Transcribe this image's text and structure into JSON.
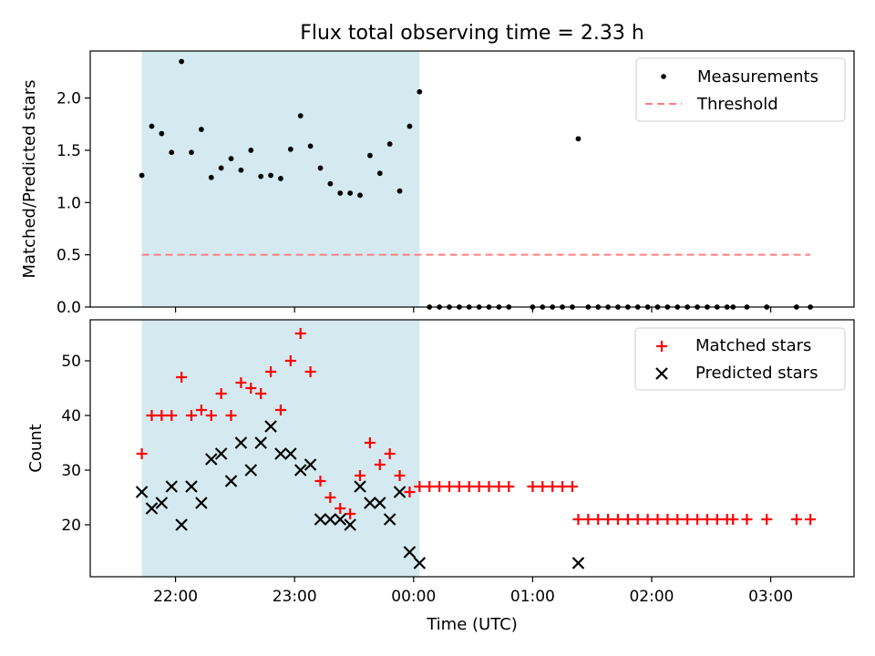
{
  "chart_data": [
    {
      "type": "scatter",
      "title": "Flux total observing time = 2.33 h",
      "xlabel": "",
      "ylabel": "Matched/Predicted stars",
      "ylim": [
        0,
        2.45
      ],
      "xlim": [
        "21:17",
        "03:42"
      ],
      "yticks": [
        "0.0",
        "0.5",
        "1.0",
        "1.5",
        "2.0"
      ],
      "shaded_region": {
        "from": "21:43",
        "to": "00:03",
        "color": "#d4eaf0"
      },
      "legend": {
        "position": "top-right",
        "entries": [
          "Measurements",
          "Threshold"
        ]
      },
      "series": [
        {
          "name": "Measurements",
          "marker": "dot",
          "color": "#000000",
          "points": [
            [
              "21:43",
              1.26
            ],
            [
              "21:48",
              1.73
            ],
            [
              "21:53",
              1.66
            ],
            [
              "21:58",
              1.48
            ],
            [
              "22:03",
              2.35
            ],
            [
              "22:08",
              1.48
            ],
            [
              "22:13",
              1.7
            ],
            [
              "22:18",
              1.24
            ],
            [
              "22:23",
              1.33
            ],
            [
              "22:28",
              1.42
            ],
            [
              "22:33",
              1.31
            ],
            [
              "22:38",
              1.5
            ],
            [
              "22:43",
              1.25
            ],
            [
              "22:48",
              1.26
            ],
            [
              "22:53",
              1.23
            ],
            [
              "22:58",
              1.51
            ],
            [
              "23:03",
              1.83
            ],
            [
              "23:08",
              1.54
            ],
            [
              "23:13",
              1.33
            ],
            [
              "23:18",
              1.18
            ],
            [
              "23:23",
              1.09
            ],
            [
              "23:28",
              1.09
            ],
            [
              "23:33",
              1.07
            ],
            [
              "23:38",
              1.45
            ],
            [
              "23:43",
              1.28
            ],
            [
              "23:48",
              1.56
            ],
            [
              "23:53",
              1.11
            ],
            [
              "23:58",
              1.73
            ],
            [
              "00:03",
              2.06
            ],
            [
              "00:08",
              0
            ],
            [
              "00:13",
              0
            ],
            [
              "00:18",
              0
            ],
            [
              "00:23",
              0
            ],
            [
              "00:28",
              0
            ],
            [
              "00:33",
              0
            ],
            [
              "00:38",
              0
            ],
            [
              "00:43",
              0
            ],
            [
              "00:48",
              0
            ],
            [
              "01:00",
              0
            ],
            [
              "01:05",
              0
            ],
            [
              "01:10",
              0
            ],
            [
              "01:15",
              0
            ],
            [
              "01:20",
              0
            ],
            [
              "01:23",
              1.61
            ],
            [
              "01:28",
              0
            ],
            [
              "01:33",
              0
            ],
            [
              "01:38",
              0
            ],
            [
              "01:43",
              0
            ],
            [
              "01:48",
              0
            ],
            [
              "01:53",
              0
            ],
            [
              "01:58",
              0
            ],
            [
              "02:03",
              0
            ],
            [
              "02:08",
              0
            ],
            [
              "02:13",
              0
            ],
            [
              "02:18",
              0
            ],
            [
              "02:23",
              0
            ],
            [
              "02:28",
              0
            ],
            [
              "02:33",
              0
            ],
            [
              "02:38",
              0
            ],
            [
              "02:41",
              0
            ],
            [
              "02:48",
              0
            ],
            [
              "02:58",
              0
            ],
            [
              "03:13",
              0
            ],
            [
              "03:20",
              0
            ]
          ]
        },
        {
          "name": "Threshold",
          "style": "dashed",
          "color": "#ff7f7f",
          "points": [
            [
              "21:43",
              0.5
            ],
            [
              "03:20",
              0.5
            ]
          ]
        }
      ]
    },
    {
      "type": "scatter",
      "title": "",
      "xlabel": "Time (UTC)",
      "ylabel": "Count",
      "ylim": [
        10.5,
        57.5
      ],
      "xlim": [
        "21:17",
        "03:42"
      ],
      "yticks": [
        "20",
        "30",
        "40",
        "50"
      ],
      "xticks": [
        "22:00",
        "23:00",
        "00:00",
        "01:00",
        "02:00",
        "03:00"
      ],
      "shaded_region": {
        "from": "21:43",
        "to": "00:03",
        "color": "#d4eaf0"
      },
      "legend": {
        "position": "top-right",
        "entries": [
          "Matched stars",
          "Predicted stars"
        ]
      },
      "series": [
        {
          "name": "Matched stars",
          "marker": "plus",
          "color": "#ff0000",
          "points": [
            [
              "21:43",
              33
            ],
            [
              "21:48",
              40
            ],
            [
              "21:53",
              40
            ],
            [
              "21:58",
              40
            ],
            [
              "22:03",
              47
            ],
            [
              "22:08",
              40
            ],
            [
              "22:13",
              41
            ],
            [
              "22:18",
              40
            ],
            [
              "22:23",
              44
            ],
            [
              "22:28",
              40
            ],
            [
              "22:33",
              46
            ],
            [
              "22:38",
              45
            ],
            [
              "22:43",
              44
            ],
            [
              "22:48",
              48
            ],
            [
              "22:53",
              41
            ],
            [
              "22:58",
              50
            ],
            [
              "23:03",
              55
            ],
            [
              "23:08",
              48
            ],
            [
              "23:13",
              28
            ],
            [
              "23:18",
              25
            ],
            [
              "23:23",
              23
            ],
            [
              "23:28",
              22
            ],
            [
              "23:33",
              29
            ],
            [
              "23:38",
              35
            ],
            [
              "23:43",
              31
            ],
            [
              "23:48",
              33
            ],
            [
              "23:53",
              29
            ],
            [
              "23:58",
              26
            ],
            [
              "00:03",
              27
            ],
            [
              "00:08",
              27
            ],
            [
              "00:13",
              27
            ],
            [
              "00:18",
              27
            ],
            [
              "00:23",
              27
            ],
            [
              "00:28",
              27
            ],
            [
              "00:33",
              27
            ],
            [
              "00:38",
              27
            ],
            [
              "00:43",
              27
            ],
            [
              "00:48",
              27
            ],
            [
              "01:00",
              27
            ],
            [
              "01:05",
              27
            ],
            [
              "01:10",
              27
            ],
            [
              "01:15",
              27
            ],
            [
              "01:20",
              27
            ],
            [
              "01:23",
              21
            ],
            [
              "01:28",
              21
            ],
            [
              "01:33",
              21
            ],
            [
              "01:38",
              21
            ],
            [
              "01:43",
              21
            ],
            [
              "01:48",
              21
            ],
            [
              "01:53",
              21
            ],
            [
              "01:58",
              21
            ],
            [
              "02:03",
              21
            ],
            [
              "02:08",
              21
            ],
            [
              "02:13",
              21
            ],
            [
              "02:18",
              21
            ],
            [
              "02:23",
              21
            ],
            [
              "02:28",
              21
            ],
            [
              "02:33",
              21
            ],
            [
              "02:38",
              21
            ],
            [
              "02:41",
              21
            ],
            [
              "02:48",
              21
            ],
            [
              "02:58",
              21
            ],
            [
              "03:13",
              21
            ],
            [
              "03:20",
              21
            ]
          ]
        },
        {
          "name": "Predicted stars",
          "marker": "x",
          "color": "#000000",
          "points": [
            [
              "21:43",
              26
            ],
            [
              "21:48",
              23
            ],
            [
              "21:53",
              24
            ],
            [
              "21:58",
              27
            ],
            [
              "22:03",
              20
            ],
            [
              "22:08",
              27
            ],
            [
              "22:13",
              24
            ],
            [
              "22:18",
              32
            ],
            [
              "22:23",
              33
            ],
            [
              "22:28",
              28
            ],
            [
              "22:33",
              35
            ],
            [
              "22:38",
              30
            ],
            [
              "22:43",
              35
            ],
            [
              "22:48",
              38
            ],
            [
              "22:53",
              33
            ],
            [
              "22:58",
              33
            ],
            [
              "23:03",
              30
            ],
            [
              "23:08",
              31
            ],
            [
              "23:13",
              21
            ],
            [
              "23:18",
              21
            ],
            [
              "23:23",
              21
            ],
            [
              "23:28",
              20
            ],
            [
              "23:33",
              27
            ],
            [
              "23:38",
              24
            ],
            [
              "23:43",
              24
            ],
            [
              "23:48",
              21
            ],
            [
              "23:53",
              26
            ],
            [
              "23:58",
              15
            ],
            [
              "00:03",
              13
            ],
            [
              "01:23",
              13
            ]
          ]
        }
      ]
    }
  ]
}
